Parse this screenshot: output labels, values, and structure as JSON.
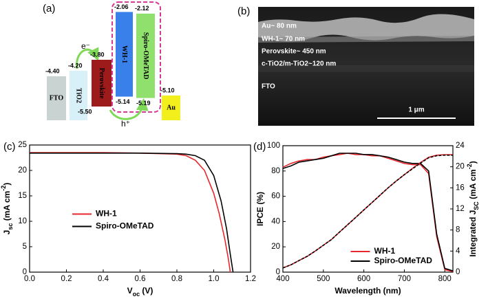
{
  "energy_diagram": {
    "panel_label": "(a)",
    "layers": [
      {
        "name": "FTO",
        "color": "#c9d3d2",
        "text_color": "#ffffff",
        "top": {
          "value": -4.4,
          "label": "-4.40"
        }
      },
      {
        "name": "TiO2",
        "color": "#d8f0f7",
        "text_color": "#333333",
        "top": {
          "value": -4.2,
          "label": "-4.20"
        }
      },
      {
        "name": "Perovskite",
        "color": "#9e1b1b",
        "text_color": "#ffffff",
        "top": {
          "value": -3.8,
          "label": "-3.80"
        },
        "bottom": {
          "value": -5.5,
          "label": "-5.50"
        }
      },
      {
        "name": "WH-1",
        "color": "#3a80ea",
        "text_color": "#ffffff",
        "top": {
          "value": -2.06,
          "label": "-2.06"
        },
        "bottom": {
          "value": -5.14,
          "label": "-5.14"
        }
      },
      {
        "name": "Spiro-OMeTAD",
        "color": "#8fe06c",
        "text_color": "#ffffff",
        "top": {
          "value": -2.12,
          "label": "-2.12"
        },
        "bottom": {
          "value": -5.19,
          "label": "-5.19"
        }
      },
      {
        "name": "Au",
        "color": "#f3ef1d",
        "text_color": "#333333",
        "top": {
          "value": -5.1,
          "label": "-5.10"
        }
      }
    ],
    "electron": "e⁻",
    "hole": "h⁺"
  },
  "sem_image": {
    "panel_label": "(b)",
    "annotations": [
      "Au~ 80 nm",
      "WH-1~ 70 nm",
      "Perovskite~ 450 nm",
      "c-TiO2/m-TiO2~120 nm",
      "FTO"
    ],
    "scale_bar": "1 μm"
  },
  "chart_data": [
    {
      "type": "line",
      "panel_label": "(c)",
      "xlabel": [
        "V",
        "oc",
        " (V)"
      ],
      "ylabel": [
        "J",
        "sc",
        " (mA cm",
        "-2",
        ")"
      ],
      "xlim": [
        0,
        1.2
      ],
      "xticks": [
        {
          "value": 0,
          "label": "0.0"
        },
        0.2,
        0.4,
        0.6,
        0.8,
        {
          "value": 1,
          "label": "1.0"
        },
        1.2
      ],
      "ylim": [
        0,
        25
      ],
      "yticks": [
        0,
        5,
        10,
        15,
        20,
        25
      ],
      "grid": false,
      "legend": "center-left",
      "series": [
        {
          "name": "WH-1",
          "color": "#e8262b",
          "x": [
            0,
            0.2,
            0.4,
            0.6,
            0.8,
            0.85,
            0.9,
            0.95,
            1.0,
            1.03,
            1.06,
            1.08,
            1.09
          ],
          "values": [
            23.5,
            23.5,
            23.5,
            23.4,
            23.2,
            22.9,
            22.0,
            20.0,
            15.5,
            11.5,
            6.5,
            2.5,
            0
          ]
        },
        {
          "name": "Spiro-OMeTAD",
          "color": "#000000",
          "x": [
            0,
            0.2,
            0.4,
            0.6,
            0.8,
            0.85,
            0.9,
            0.95,
            1.0,
            1.04,
            1.07,
            1.09,
            1.105
          ],
          "values": [
            23.4,
            23.4,
            23.4,
            23.4,
            23.3,
            23.2,
            22.9,
            22.0,
            19.0,
            14.0,
            8.5,
            3.5,
            0
          ]
        }
      ]
    },
    {
      "type": "line",
      "panel_label": "(d)",
      "xlabel": "Wavelength (nm)",
      "ylabel": "IPCE (%)",
      "y2label": [
        "Integrated J",
        "SC",
        " (mA cm",
        "-2",
        ")"
      ],
      "xlim": [
        400,
        820
      ],
      "xticks": [
        400,
        500,
        600,
        700,
        800
      ],
      "ylim": [
        0,
        100
      ],
      "yticks": [
        0,
        20,
        40,
        60,
        80,
        100
      ],
      "y2lim": [
        0,
        24
      ],
      "y2ticks": [
        0,
        4,
        8,
        12,
        16,
        20,
        24
      ],
      "grid": false,
      "legend": "lower-center",
      "x": [
        400,
        420,
        440,
        460,
        480,
        500,
        520,
        540,
        560,
        580,
        600,
        620,
        640,
        660,
        680,
        700,
        720,
        740,
        760,
        780,
        800,
        820
      ],
      "series": [
        {
          "name": "WH-1",
          "color": "#e8262b",
          "values": [
            83,
            86,
            88,
            89,
            89,
            91,
            92,
            93,
            94,
            93,
            93,
            92,
            92,
            90,
            88,
            86,
            85,
            85,
            78,
            28,
            2,
            0.5
          ]
        },
        {
          "name": "Spiro-OMeTAD",
          "color": "#000000",
          "values": [
            82,
            84,
            87,
            88,
            89,
            90,
            92,
            94,
            94,
            94,
            93,
            93,
            92,
            91,
            89,
            87,
            86,
            86,
            80,
            30,
            3,
            1
          ]
        },
        {
          "color": "#e8262b",
          "axis": "y2",
          "values": [
            0.8,
            1.4,
            2.2,
            3.0,
            4.0,
            5.1,
            6.2,
            7.6,
            9.0,
            10.4,
            11.8,
            13.2,
            14.6,
            16.0,
            17.3,
            18.5,
            19.7,
            20.8,
            21.8,
            22.2,
            22.3,
            22.3
          ]
        },
        {
          "color": "#000000",
          "axis": "y2",
          "dashed": true,
          "values": [
            0.8,
            1.4,
            2.2,
            3.0,
            4.0,
            5.1,
            6.2,
            7.6,
            9.0,
            10.4,
            11.8,
            13.2,
            14.6,
            16.0,
            17.3,
            18.5,
            19.6,
            20.7,
            21.7,
            22.1,
            22.2,
            22.2
          ]
        }
      ]
    }
  ]
}
